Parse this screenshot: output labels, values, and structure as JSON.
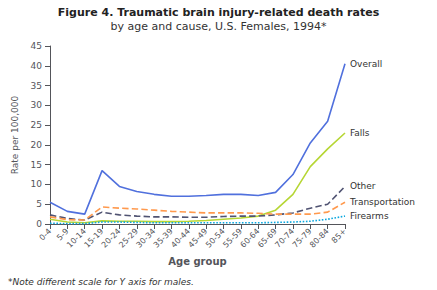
{
  "chart_data": {
    "type": "line",
    "title": "Figure 4. Traumatic brain injury-related death rates",
    "subtitle": "by age and cause, U.S. Females, 1994*",
    "annotations": [
      "*Note different scale for Y axis for males."
    ],
    "x_label": "Age group",
    "y_label": "Rate per 100,000",
    "categories": [
      "0-4",
      "5-9",
      "10-14",
      "15-19",
      "20-24",
      "25-29",
      "30-34",
      "35-39",
      "40-44",
      "45-49",
      "50-54",
      "55-59",
      "60-64",
      "65-69",
      "70-74",
      "75-79",
      "80-84",
      "85+"
    ],
    "series": [
      {
        "name": "Overall",
        "line_style": "solid",
        "values": [
          5.5,
          3.2,
          2.5,
          13.5,
          9.5,
          8.2,
          7.5,
          7.0,
          7.0,
          7.2,
          7.5,
          7.5,
          7.2,
          8.0,
          12.5,
          20.5,
          26.0,
          40.5
        ]
      },
      {
        "name": "Falls",
        "line_style": "solid",
        "values": [
          1.2,
          0.5,
          0.3,
          0.8,
          0.7,
          0.7,
          0.6,
          0.6,
          0.7,
          0.9,
          1.2,
          1.5,
          2.0,
          3.5,
          7.5,
          14.5,
          19.0,
          23.0
        ]
      },
      {
        "name": "Other",
        "line_style": "dashed",
        "values": [
          2.3,
          1.4,
          1.0,
          3.0,
          2.3,
          2.0,
          1.8,
          1.8,
          1.7,
          1.7,
          1.9,
          2.0,
          2.0,
          2.3,
          2.8,
          4.0,
          5.0,
          9.5
        ]
      },
      {
        "name": "Transportation",
        "line_style": "dashed",
        "values": [
          1.8,
          1.1,
          1.0,
          4.3,
          4.0,
          3.8,
          3.5,
          3.2,
          3.0,
          2.8,
          2.8,
          2.8,
          2.7,
          2.5,
          2.5,
          2.5,
          3.0,
          5.5
        ]
      },
      {
        "name": "Firearms",
        "line_style": "dotted",
        "values": [
          0.2,
          0.1,
          0.1,
          0.5,
          0.5,
          0.4,
          0.3,
          0.3,
          0.3,
          0.3,
          0.3,
          0.3,
          0.3,
          0.4,
          0.5,
          0.7,
          1.2,
          2.0
        ]
      }
    ],
    "ylim": [
      0,
      45
    ],
    "yticks": [
      0,
      5,
      10,
      15,
      20,
      25,
      30,
      35,
      40,
      45
    ],
    "grid": false
  }
}
